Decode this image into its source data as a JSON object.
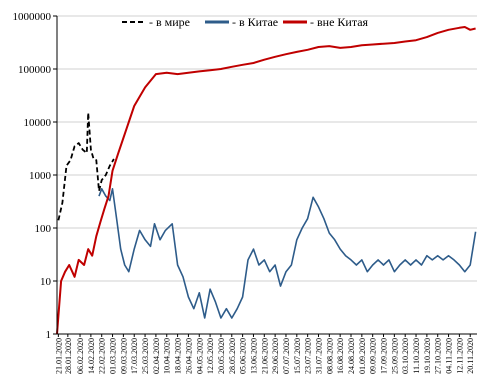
{
  "chart_data": {
    "type": "line",
    "title": "",
    "xlabel": "",
    "ylabel": "",
    "y_scale": "log",
    "ylim": [
      1,
      1000000
    ],
    "grid": "horizontal",
    "legend_position": "top",
    "y_ticks": [
      "1",
      "10",
      "100",
      "1000",
      "10000",
      "100000",
      "1000000"
    ],
    "x_tick_labels": [
      "21.01.2020",
      "28.01.2020",
      "06.02.2020",
      "14.02.2020",
      "22.02.2020",
      "01.03.2020",
      "09.03.2020",
      "17.03.2020",
      "25.03.2020",
      "02.04.2020",
      "10.04.2020",
      "18.04.2020",
      "26.04.2020",
      "04.05.2020",
      "12.05.2020",
      "20.05.2020",
      "28.05.2020",
      "05.06.2020",
      "13.06.2020",
      "21.06.2020",
      "29.06.2020",
      "07.07.2020",
      "15.07.2020",
      "23.07.2020",
      "31.07.2020",
      "08.08.2020",
      "16.08.2020",
      "24.08.2020",
      "01.09.2020",
      "09.09.2020",
      "17.09.2020",
      "25.09.2020",
      "03.10.2020",
      "11.10.2020",
      "19.10.2020",
      "27.10.2020",
      "04.11.2020",
      "12.11.2020",
      "20.11.2020"
    ],
    "series": [
      {
        "name": "- в мире",
        "color": "#000000",
        "dashed": true,
        "points": [
          [
            "21.01.2020",
            140
          ],
          [
            "24.01.2020",
            300
          ],
          [
            "27.01.2020",
            1500
          ],
          [
            "30.01.2020",
            1900
          ],
          [
            "02.02.2020",
            3500
          ],
          [
            "05.02.2020",
            4000
          ],
          [
            "08.02.2020",
            3000
          ],
          [
            "11.02.2020",
            2600
          ],
          [
            "12.02.2020",
            15000
          ],
          [
            "14.02.2020",
            3000
          ],
          [
            "16.02.2020",
            2000
          ],
          [
            "18.02.2020",
            1900
          ],
          [
            "20.02.2020",
            500
          ],
          [
            "22.02.2020",
            800
          ],
          [
            "25.02.2020",
            1000
          ],
          [
            "28.02.2020",
            1500
          ],
          [
            "02.03.2020",
            2000
          ]
        ]
      },
      {
        "name": "- в Китае",
        "color": "#2e5c8a",
        "dashed": false,
        "points": [
          [
            "20.02.2020",
            400
          ],
          [
            "22.02.2020",
            550
          ],
          [
            "25.02.2020",
            400
          ],
          [
            "28.02.2020",
            330
          ],
          [
            "01.03.2020",
            550
          ],
          [
            "04.03.2020",
            150
          ],
          [
            "07.03.2020",
            40
          ],
          [
            "10.03.2020",
            20
          ],
          [
            "13.03.2020",
            15
          ],
          [
            "17.03.2020",
            40
          ],
          [
            "21.03.2020",
            90
          ],
          [
            "25.03.2020",
            60
          ],
          [
            "29.03.2020",
            45
          ],
          [
            "01.04.2020",
            120
          ],
          [
            "05.04.2020",
            60
          ],
          [
            "09.04.2020",
            90
          ],
          [
            "14.04.2020",
            120
          ],
          [
            "18.04.2020",
            20
          ],
          [
            "22.04.2020",
            12
          ],
          [
            "26.04.2020",
            5
          ],
          [
            "30.04.2020",
            3
          ],
          [
            "04.05.2020",
            6
          ],
          [
            "08.05.2020",
            2
          ],
          [
            "12.05.2020",
            7
          ],
          [
            "16.05.2020",
            4
          ],
          [
            "20.05.2020",
            2
          ],
          [
            "24.05.2020",
            3
          ],
          [
            "28.05.2020",
            2
          ],
          [
            "01.06.2020",
            3
          ],
          [
            "05.06.2020",
            5
          ],
          [
            "09.06.2020",
            25
          ],
          [
            "13.06.2020",
            40
          ],
          [
            "17.06.2020",
            20
          ],
          [
            "21.06.2020",
            25
          ],
          [
            "25.06.2020",
            15
          ],
          [
            "29.06.2020",
            20
          ],
          [
            "03.07.2020",
            8
          ],
          [
            "07.07.2020",
            15
          ],
          [
            "11.07.2020",
            20
          ],
          [
            "15.07.2020",
            60
          ],
          [
            "19.07.2020",
            100
          ],
          [
            "23.07.2020",
            150
          ],
          [
            "27.07.2020",
            380
          ],
          [
            "31.07.2020",
            250
          ],
          [
            "04.08.2020",
            150
          ],
          [
            "08.08.2020",
            80
          ],
          [
            "12.08.2020",
            60
          ],
          [
            "16.08.2020",
            40
          ],
          [
            "20.08.2020",
            30
          ],
          [
            "24.08.2020",
            25
          ],
          [
            "28.08.2020",
            20
          ],
          [
            "01.09.2020",
            25
          ],
          [
            "05.09.2020",
            15
          ],
          [
            "09.09.2020",
            20
          ],
          [
            "13.09.2020",
            25
          ],
          [
            "17.09.2020",
            20
          ],
          [
            "21.09.2020",
            25
          ],
          [
            "25.09.2020",
            15
          ],
          [
            "29.09.2020",
            20
          ],
          [
            "03.10.2020",
            25
          ],
          [
            "07.10.2020",
            20
          ],
          [
            "11.10.2020",
            25
          ],
          [
            "15.10.2020",
            20
          ],
          [
            "19.10.2020",
            30
          ],
          [
            "23.10.2020",
            25
          ],
          [
            "27.10.2020",
            30
          ],
          [
            "31.10.2020",
            25
          ],
          [
            "04.11.2020",
            30
          ],
          [
            "08.11.2020",
            25
          ],
          [
            "12.11.2020",
            20
          ],
          [
            "16.11.2020",
            15
          ],
          [
            "20.11.2020",
            20
          ],
          [
            "24.11.2020",
            85
          ]
        ]
      },
      {
        "name": "- вне Китая",
        "color": "#c00000",
        "dashed": false,
        "points": [
          [
            "20.01.2020",
            1
          ],
          [
            "23.01.2020",
            10
          ],
          [
            "26.01.2020",
            15
          ],
          [
            "29.01.2020",
            20
          ],
          [
            "02.02.2020",
            12
          ],
          [
            "05.02.2020",
            25
          ],
          [
            "09.02.2020",
            20
          ],
          [
            "12.02.2020",
            40
          ],
          [
            "15.02.2020",
            30
          ],
          [
            "18.02.2020",
            70
          ],
          [
            "21.02.2020",
            130
          ],
          [
            "24.02.2020",
            230
          ],
          [
            "27.02.2020",
            400
          ],
          [
            "01.03.2020",
            1200
          ],
          [
            "05.03.2020",
            2500
          ],
          [
            "09.03.2020",
            5000
          ],
          [
            "13.03.2020",
            10000
          ],
          [
            "17.03.2020",
            20000
          ],
          [
            "21.03.2020",
            30000
          ],
          [
            "25.03.2020",
            45000
          ],
          [
            "29.03.2020",
            60000
          ],
          [
            "02.04.2020",
            80000
          ],
          [
            "10.04.2020",
            85000
          ],
          [
            "18.04.2020",
            80000
          ],
          [
            "26.04.2020",
            85000
          ],
          [
            "04.05.2020",
            90000
          ],
          [
            "12.05.2020",
            95000
          ],
          [
            "20.05.2020",
            100000
          ],
          [
            "28.05.2020",
            110000
          ],
          [
            "05.06.2020",
            120000
          ],
          [
            "13.06.2020",
            130000
          ],
          [
            "21.06.2020",
            150000
          ],
          [
            "29.06.2020",
            170000
          ],
          [
            "07.07.2020",
            190000
          ],
          [
            "15.07.2020",
            210000
          ],
          [
            "23.07.2020",
            230000
          ],
          [
            "31.07.2020",
            260000
          ],
          [
            "08.08.2020",
            270000
          ],
          [
            "16.08.2020",
            250000
          ],
          [
            "24.08.2020",
            260000
          ],
          [
            "01.09.2020",
            280000
          ],
          [
            "09.09.2020",
            290000
          ],
          [
            "17.09.2020",
            300000
          ],
          [
            "25.09.2020",
            310000
          ],
          [
            "03.10.2020",
            330000
          ],
          [
            "11.10.2020",
            350000
          ],
          [
            "19.10.2020",
            400000
          ],
          [
            "27.10.2020",
            480000
          ],
          [
            "04.11.2020",
            550000
          ],
          [
            "12.11.2020",
            600000
          ],
          [
            "16.11.2020",
            620000
          ],
          [
            "20.11.2020",
            550000
          ],
          [
            "24.11.2020",
            580000
          ]
        ]
      }
    ]
  }
}
